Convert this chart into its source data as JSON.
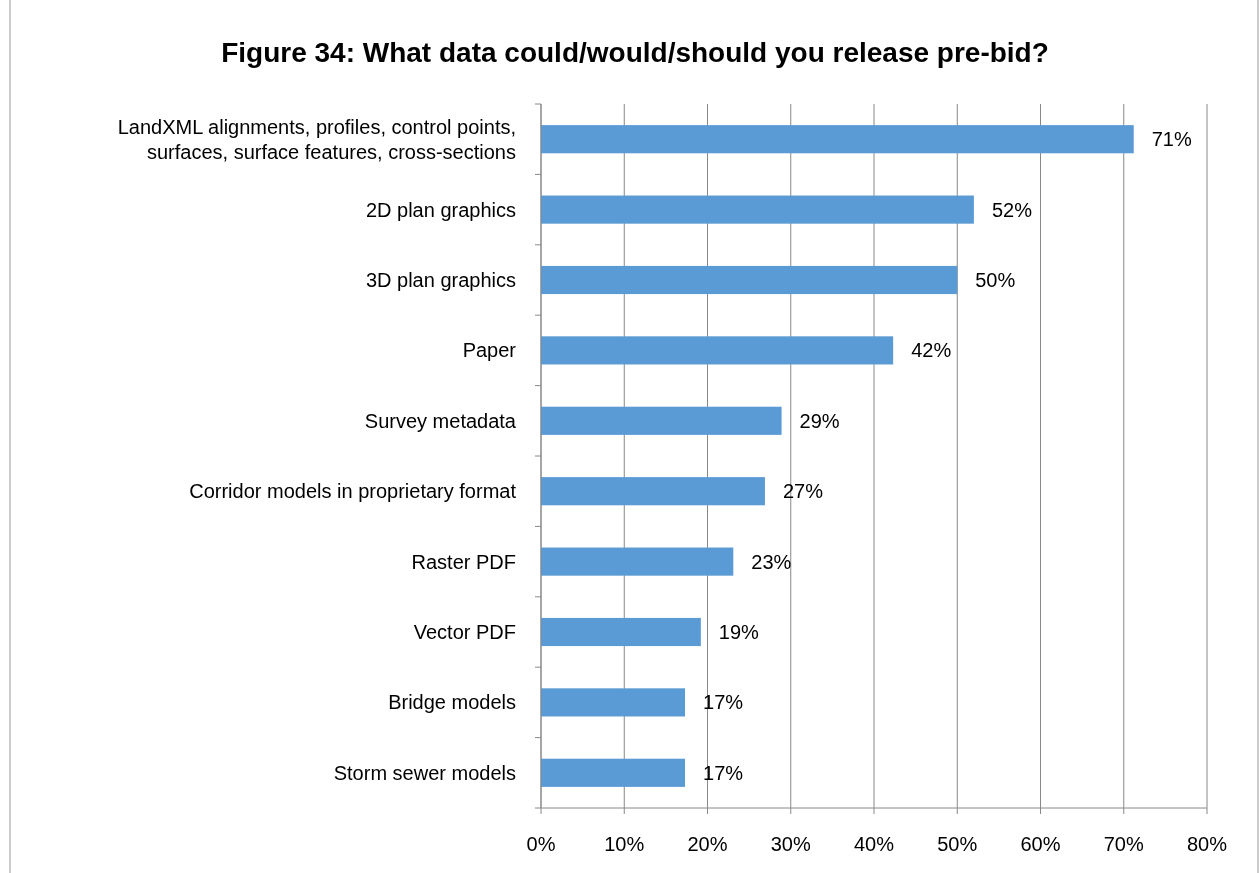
{
  "chart_data": {
    "type": "bar",
    "orientation": "horizontal",
    "title": "Figure 34: What data could/would/should you release pre-bid?",
    "categories": [
      "LandXML alignments, profiles, control points, surfaces, surface features, cross-sections",
      "2D plan graphics",
      "3D plan graphics",
      "Paper",
      "Survey metadata",
      "Corridor models in proprietary format",
      "Raster PDF",
      "Vector PDF",
      "Bridge models",
      "Storm sewer models"
    ],
    "values": [
      71.2,
      52,
      50,
      42.3,
      28.9,
      26.9,
      23.1,
      19.2,
      17.3,
      17.3
    ],
    "value_labels": [
      "71%",
      "52%",
      "50%",
      "42%",
      "29%",
      "27%",
      "23%",
      "19%",
      "17%",
      "17%"
    ],
    "color": "#5b9bd5",
    "xlim": [
      0,
      80
    ],
    "xticks": [
      {
        "value": 0,
        "label": "0%"
      },
      {
        "value": 10,
        "label": "10%"
      },
      {
        "value": 20,
        "label": "20%"
      },
      {
        "value": 30,
        "label": "30%"
      },
      {
        "value": 40,
        "label": "40%"
      },
      {
        "value": 50,
        "label": "50%"
      },
      {
        "value": 60,
        "label": "60%"
      },
      {
        "value": 70,
        "label": "70%"
      },
      {
        "value": 80,
        "label": "80%"
      }
    ],
    "grid": "x"
  }
}
